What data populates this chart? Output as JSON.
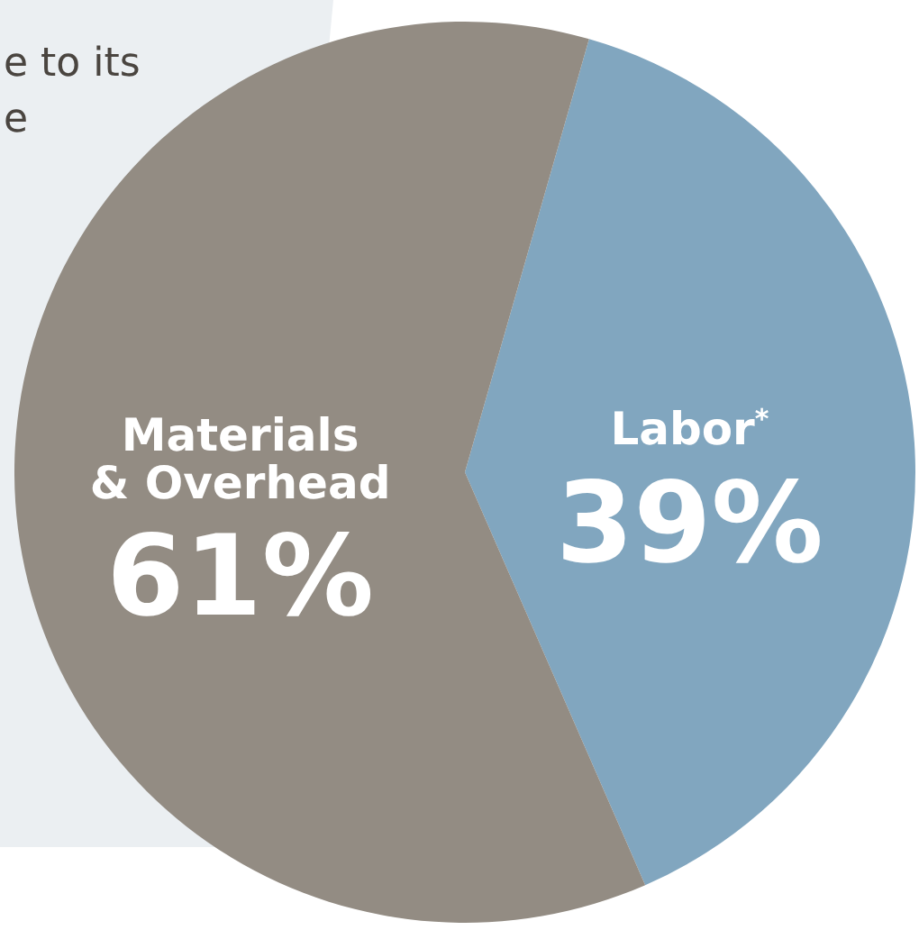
{
  "chart_data": {
    "type": "pie",
    "categories": [
      "Labor$^{*}$",
      "Materials & Overhead"
    ],
    "values": [
      39,
      61
    ],
    "colors": [
      "#81a6bf",
      "#938c83"
    ],
    "value_labels": [
      "39%",
      "61%"
    ],
    "annotations": [
      "e to its",
      "e"
    ]
  }
}
